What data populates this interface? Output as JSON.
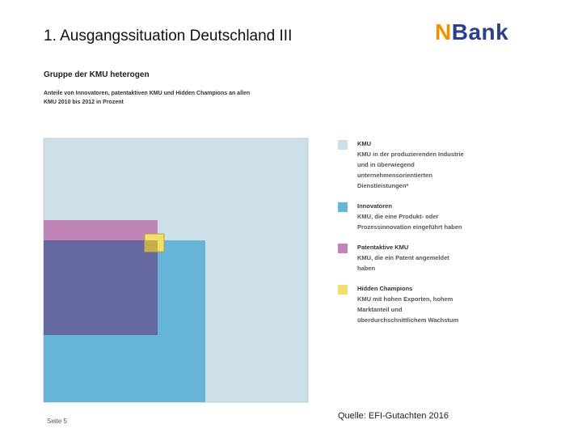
{
  "slide": {
    "title": "1. Ausgangssituation Deutschland III",
    "page_number": "Seite 5",
    "source": "Quelle: EFI-Gutachten 2016"
  },
  "logo": {
    "mark": "N",
    "text": "Bank",
    "colors": {
      "mark": "#f39200",
      "text": "#2b3f8a"
    }
  },
  "figure": {
    "title": "Gruppe der KMU heterogen",
    "subtitle": "Anteile von Innovatoren, patentaktiven KMU und Hidden Champions an allen KMU 2010 bis 2012 in Prozent"
  },
  "legend": [
    {
      "name": "KMU",
      "description": "KMU in der produzierenden Industrie und in überwiegend unternehmensorientierten Dienstleistungen*",
      "color": "#cde0ea"
    },
    {
      "name": "Innovatoren",
      "description": "KMU, die eine Produkt- oder Prozessinnovation eingeführt haben",
      "color": "#66b5d8"
    },
    {
      "name": "Patentaktive KMU",
      "description": "KMU, die ein Patent angemeldet haben",
      "color": "#c084b7"
    },
    {
      "name": "Hidden Champions",
      "description": "KMU mit hohen Exporten, hohem Marktanteil und überdurchschnittlichem Wachstum",
      "color": "#f0df6a"
    }
  ],
  "colors": {
    "overlap_innovator_patent": "#65689f",
    "overlap_champion": "#c9ad4c"
  }
}
